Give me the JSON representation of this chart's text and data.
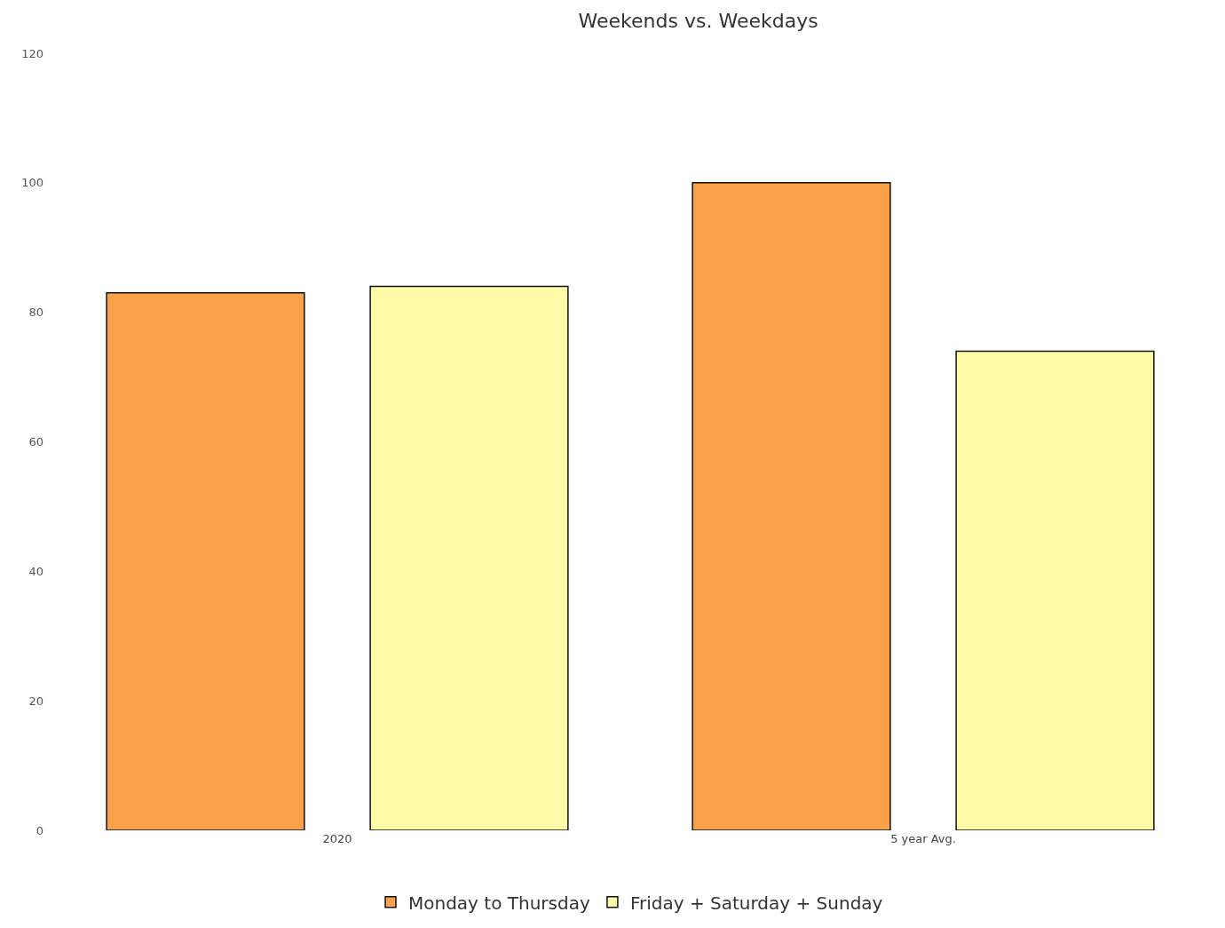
{
  "chart_data": {
    "type": "bar",
    "title": "Weekends vs. Weekdays",
    "categories": [
      "2020",
      "5 year Avg."
    ],
    "series": [
      {
        "name": "Monday to Thursday",
        "color": "#f9a24a",
        "values": [
          83,
          100
        ]
      },
      {
        "name": "Friday + Saturday + Sunday",
        "color": "#fffaa8",
        "values": [
          84,
          74
        ]
      }
    ],
    "ylim": [
      0,
      120
    ],
    "yticks": [
      0,
      20,
      40,
      60,
      80,
      100,
      120
    ],
    "grid": false,
    "legend": "bottom"
  }
}
